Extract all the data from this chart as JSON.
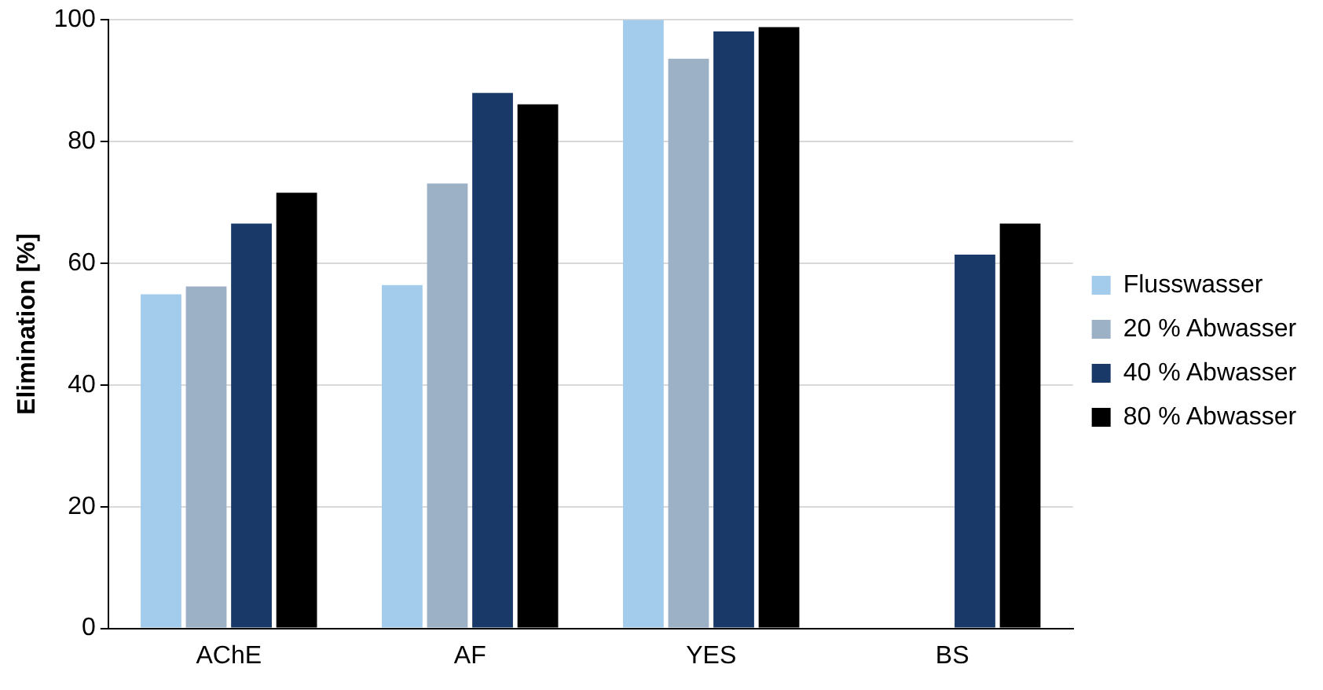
{
  "chart_data": {
    "type": "bar",
    "ylabel": "Elimination [%]",
    "categories": [
      "AChE",
      "AF",
      "YES",
      "BS"
    ],
    "series": [
      {
        "name": "Flusswasser",
        "color": "#a3cbec",
        "values": [
          54.9,
          56.4,
          100,
          null
        ]
      },
      {
        "name": "20 % Abwasser",
        "color": "#9db1c6",
        "values": [
          56.2,
          73.1,
          93.6,
          null
        ]
      },
      {
        "name": "40 % Abwasser",
        "color": "#193a68",
        "values": [
          66.5,
          88,
          98.1,
          61.4
        ]
      },
      {
        "name": "80 % Abwasser",
        "color": "#000000",
        "values": [
          71.6,
          86.1,
          98.8,
          66.5
        ]
      }
    ],
    "ylim": [
      0,
      100
    ],
    "yticks": [
      0,
      20,
      40,
      60,
      80,
      100
    ],
    "grid": "y",
    "legend": "right"
  }
}
